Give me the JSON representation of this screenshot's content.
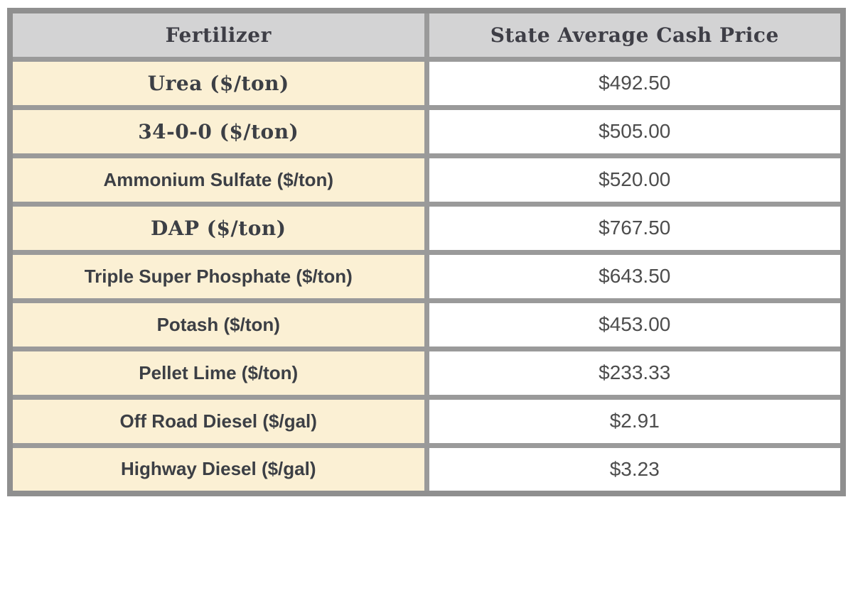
{
  "table": {
    "columns": [
      "Fertilizer",
      "State Average Cash Price"
    ],
    "rows": [
      {
        "label": "Urea ($/ton)",
        "value": "$492.50",
        "label_style": "serif"
      },
      {
        "label": "34-0-0 ($/ton)",
        "value": "$505.00",
        "label_style": "serif"
      },
      {
        "label": "Ammonium Sulfate ($/ton)",
        "value": "$520.00",
        "label_style": "sans"
      },
      {
        "label": "DAP ($/ton)",
        "value": "$767.50",
        "label_style": "serif"
      },
      {
        "label": "Triple Super Phosphate ($/ton)",
        "value": "$643.50",
        "label_style": "sans"
      },
      {
        "label": "Potash ($/ton)",
        "value": "$453.00",
        "label_style": "sans"
      },
      {
        "label": "Pellet Lime ($/ton)",
        "value": "$233.33",
        "label_style": "sans"
      },
      {
        "label": "Off Road Diesel ($/gal)",
        "value": "$2.91",
        "label_style": "sans"
      },
      {
        "label": "Highway Diesel ($/gal)",
        "value": "$3.23",
        "label_style": "sans"
      }
    ]
  },
  "colors": {
    "header_bg": "#d3d3d4",
    "label_bg": "#fbf0d4",
    "value_bg": "#ffffff",
    "inner_border": "#9a9a9a",
    "outer_border": "#8f8f8f",
    "header_text": "#3e3e46",
    "label_text": "#3c3f45",
    "value_text": "#4d4d4d"
  },
  "chart_data": {
    "type": "table",
    "title": "",
    "columns": [
      "Fertilizer",
      "State Average Cash Price"
    ],
    "rows": [
      [
        "Urea ($/ton)",
        "$492.50"
      ],
      [
        "34-0-0 ($/ton)",
        "$505.00"
      ],
      [
        "Ammonium Sulfate ($/ton)",
        "$520.00"
      ],
      [
        "DAP ($/ton)",
        "$767.50"
      ],
      [
        "Triple Super Phosphate ($/ton)",
        "$643.50"
      ],
      [
        "Potash ($/ton)",
        "$453.00"
      ],
      [
        "Pellet Lime ($/ton)",
        "$233.33"
      ],
      [
        "Off Road Diesel ($/gal)",
        "$2.91"
      ],
      [
        "Highway Diesel ($/gal)",
        "$3.23"
      ]
    ],
    "values_numeric": [
      492.5,
      505.0,
      520.0,
      767.5,
      643.5,
      453.0,
      233.33,
      2.91,
      3.23
    ]
  }
}
